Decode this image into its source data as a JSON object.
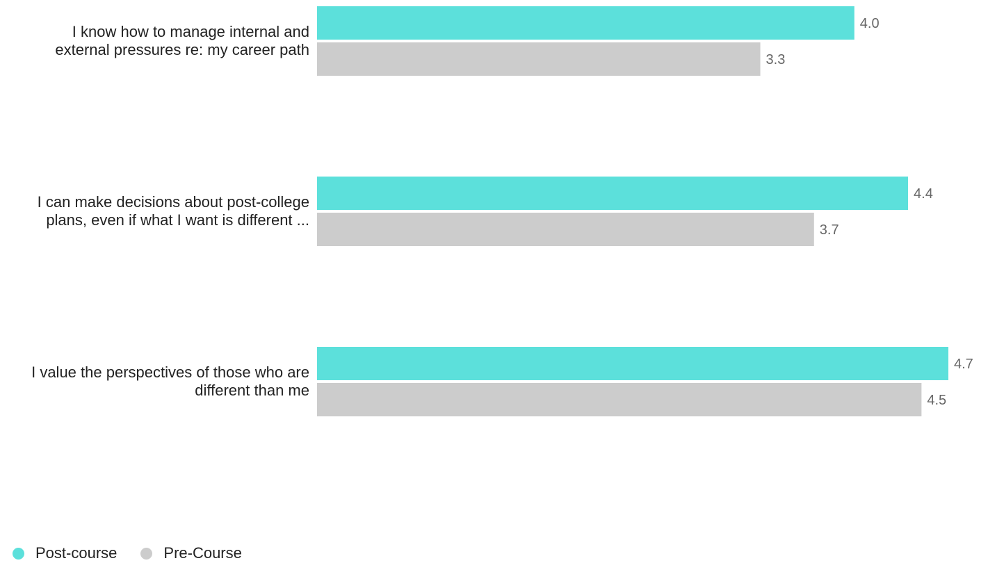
{
  "chart_data": {
    "type": "bar",
    "orientation": "horizontal",
    "categories": [
      [
        "I know how to manage internal and",
        "external pressures re: my career path"
      ],
      [
        "I can make decisions about post-college",
        "plans, even if what I want is different ..."
      ],
      [
        "I value the perspectives of those who are",
        "different than me"
      ]
    ],
    "series": [
      {
        "name": "Post-course",
        "color": "#5ce0db",
        "values": [
          4.0,
          4.4,
          4.7
        ]
      },
      {
        "name": "Pre-Course",
        "color": "#cccccc",
        "values": [
          3.3,
          3.7,
          4.5
        ]
      }
    ],
    "xlim": [
      0,
      4.7
    ],
    "grid": false,
    "legend_position": "bottom-left"
  }
}
